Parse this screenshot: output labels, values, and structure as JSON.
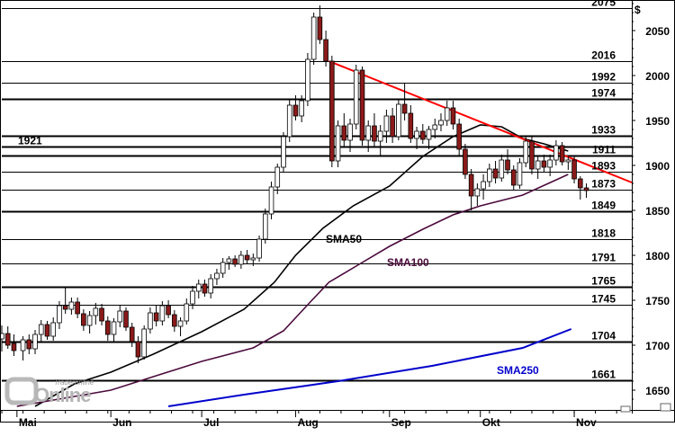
{
  "chart_data": {
    "type": "candlestick",
    "currency_label": "$",
    "ylim": [
      1632,
      2082
    ],
    "y_ticks": [
      1650,
      1700,
      1750,
      1800,
      1850,
      1900,
      1950,
      2000,
      2050
    ],
    "x_range": [
      "2016-04-26",
      "2016-11-20"
    ],
    "x_ticks": [
      {
        "label": "Mai",
        "date": "2016-05-01"
      },
      {
        "label": "Jun",
        "date": "2016-06-01"
      },
      {
        "label": "Jul",
        "date": "2016-07-01"
      },
      {
        "label": "Aug",
        "date": "2016-08-01"
      },
      {
        "label": "Sep",
        "date": "2016-09-01"
      },
      {
        "label": "Okt",
        "date": "2016-10-01"
      },
      {
        "label": "Nov",
        "date": "2016-11-01"
      }
    ],
    "levels": [
      {
        "value": 2075,
        "label": "2075",
        "bold": false
      },
      {
        "value": 2016,
        "label": "2016",
        "bold": false
      },
      {
        "value": 1992,
        "label": "1992",
        "bold": false
      },
      {
        "value": 1974,
        "label": "1974",
        "bold": true
      },
      {
        "value": 1933,
        "label": "1933",
        "bold": true
      },
      {
        "value": 1921,
        "label": "1921",
        "bold": true,
        "label_side": "left"
      },
      {
        "value": 1911,
        "label": "1911",
        "bold": true
      },
      {
        "value": 1893,
        "label": "1893",
        "bold": false
      },
      {
        "value": 1873,
        "label": "1873",
        "bold": false
      },
      {
        "value": 1849,
        "label": "1849",
        "bold": true
      },
      {
        "value": 1818,
        "label": "1818",
        "bold": false
      },
      {
        "value": 1791,
        "label": "1791",
        "bold": false
      },
      {
        "value": 1765,
        "label": "1765",
        "bold": true
      },
      {
        "value": 1745,
        "label": "1745",
        "bold": false
      },
      {
        "value": 1704,
        "label": "1704",
        "bold": true
      },
      {
        "value": 1661,
        "label": "1661",
        "bold": true
      }
    ],
    "trendline": {
      "color": "#ff0000",
      "points": [
        [
          "2016-08-12",
          2016
        ],
        [
          "2016-11-20",
          1881
        ]
      ]
    },
    "sma": [
      {
        "name": "SMA50",
        "color": "#000000",
        "points": [
          [
            "2016-05-07",
            1632
          ],
          [
            "2016-05-20",
            1657
          ],
          [
            "2016-06-01",
            1670
          ],
          [
            "2016-06-15",
            1690
          ],
          [
            "2016-07-01",
            1715
          ],
          [
            "2016-07-15",
            1740
          ],
          [
            "2016-07-25",
            1770
          ],
          [
            "2016-08-01",
            1800
          ],
          [
            "2016-08-10",
            1830
          ],
          [
            "2016-08-20",
            1855
          ],
          [
            "2016-09-01",
            1877
          ],
          [
            "2016-09-12",
            1910
          ],
          [
            "2016-09-22",
            1932
          ],
          [
            "2016-10-01",
            1945
          ],
          [
            "2016-10-08",
            1943
          ],
          [
            "2016-10-15",
            1930
          ],
          [
            "2016-10-22",
            1924
          ],
          [
            "2016-10-30",
            1916
          ]
        ]
      },
      {
        "name": "SMA100",
        "color": "#4b0a3c",
        "points": [
          [
            "2016-05-01",
            1632
          ],
          [
            "2016-06-01",
            1650
          ],
          [
            "2016-06-15",
            1665
          ],
          [
            "2016-07-01",
            1682
          ],
          [
            "2016-07-18",
            1697
          ],
          [
            "2016-07-28",
            1716
          ],
          [
            "2016-08-05",
            1745
          ],
          [
            "2016-08-12",
            1770
          ],
          [
            "2016-08-22",
            1790
          ],
          [
            "2016-09-01",
            1810
          ],
          [
            "2016-09-12",
            1829
          ],
          [
            "2016-09-22",
            1845
          ],
          [
            "2016-10-01",
            1855
          ],
          [
            "2016-10-15",
            1867
          ],
          [
            "2016-10-30",
            1890
          ]
        ]
      },
      {
        "name": "SMA250",
        "color": "#0000cc",
        "points": [
          [
            "2016-06-20",
            1632
          ],
          [
            "2016-07-15",
            1645
          ],
          [
            "2016-08-15",
            1660
          ],
          [
            "2016-09-15",
            1677
          ],
          [
            "2016-10-15",
            1697
          ],
          [
            "2016-10-31",
            1718
          ]
        ]
      }
    ],
    "candles": [
      [
        "2016-04-26",
        1707,
        1722,
        1693,
        1713
      ],
      [
        "2016-04-28",
        1713,
        1721,
        1696,
        1700
      ],
      [
        "2016-04-30",
        1702,
        1712,
        1688,
        1694
      ],
      [
        "2016-05-03",
        1694,
        1710,
        1683,
        1706
      ],
      [
        "2016-05-05",
        1706,
        1712,
        1690,
        1696
      ],
      [
        "2016-05-07",
        1696,
        1717,
        1690,
        1712
      ],
      [
        "2016-05-09",
        1712,
        1728,
        1703,
        1723
      ],
      [
        "2016-05-11",
        1723,
        1727,
        1706,
        1710
      ],
      [
        "2016-05-13",
        1710,
        1731,
        1705,
        1725
      ],
      [
        "2016-05-15",
        1725,
        1749,
        1718,
        1744
      ],
      [
        "2016-05-17",
        1744,
        1764,
        1735,
        1740
      ],
      [
        "2016-05-19",
        1740,
        1753,
        1734,
        1748
      ],
      [
        "2016-05-21",
        1748,
        1753,
        1730,
        1735
      ],
      [
        "2016-05-23",
        1735,
        1740,
        1716,
        1722
      ],
      [
        "2016-05-25",
        1722,
        1738,
        1713,
        1733
      ],
      [
        "2016-05-27",
        1733,
        1747,
        1723,
        1741
      ],
      [
        "2016-05-29",
        1741,
        1746,
        1722,
        1727
      ],
      [
        "2016-05-31",
        1727,
        1732,
        1705,
        1712
      ],
      [
        "2016-06-02",
        1712,
        1730,
        1704,
        1726
      ],
      [
        "2016-06-04",
        1726,
        1744,
        1720,
        1738
      ],
      [
        "2016-06-06",
        1738,
        1742,
        1716,
        1720
      ],
      [
        "2016-06-08",
        1720,
        1725,
        1698,
        1704
      ],
      [
        "2016-06-10",
        1704,
        1710,
        1680,
        1687
      ],
      [
        "2016-06-12",
        1687,
        1722,
        1684,
        1718
      ],
      [
        "2016-06-14",
        1718,
        1742,
        1713,
        1736
      ],
      [
        "2016-06-16",
        1736,
        1744,
        1721,
        1727
      ],
      [
        "2016-06-18",
        1727,
        1749,
        1722,
        1744
      ],
      [
        "2016-06-20",
        1744,
        1750,
        1730,
        1734
      ],
      [
        "2016-06-22",
        1734,
        1739,
        1715,
        1721
      ],
      [
        "2016-06-24",
        1721,
        1731,
        1710,
        1727
      ],
      [
        "2016-06-26",
        1727,
        1752,
        1723,
        1746
      ],
      [
        "2016-06-28",
        1746,
        1766,
        1740,
        1760
      ],
      [
        "2016-06-30",
        1760,
        1773,
        1752,
        1768
      ],
      [
        "2016-07-02",
        1768,
        1773,
        1754,
        1758
      ],
      [
        "2016-07-04",
        1758,
        1779,
        1752,
        1774
      ],
      [
        "2016-07-06",
        1774,
        1785,
        1767,
        1780
      ],
      [
        "2016-07-08",
        1780,
        1797,
        1775,
        1792
      ],
      [
        "2016-07-10",
        1792,
        1799,
        1784,
        1796
      ],
      [
        "2016-07-12",
        1796,
        1800,
        1787,
        1790
      ],
      [
        "2016-07-14",
        1790,
        1805,
        1785,
        1800
      ],
      [
        "2016-07-16",
        1800,
        1806,
        1790,
        1795
      ],
      [
        "2016-07-18",
        1795,
        1802,
        1788,
        1797
      ],
      [
        "2016-07-20",
        1797,
        1822,
        1793,
        1818
      ],
      [
        "2016-07-22",
        1818,
        1852,
        1813,
        1846
      ],
      [
        "2016-07-24",
        1846,
        1882,
        1840,
        1876
      ],
      [
        "2016-07-26",
        1876,
        1902,
        1868,
        1898
      ],
      [
        "2016-07-28",
        1898,
        1937,
        1892,
        1932
      ],
      [
        "2016-07-30",
        1932,
        1973,
        1926,
        1967
      ],
      [
        "2016-08-01",
        1967,
        1978,
        1950,
        1955
      ],
      [
        "2016-08-03",
        1955,
        1978,
        1948,
        1972
      ],
      [
        "2016-08-05",
        1972,
        2025,
        1966,
        2018
      ],
      [
        "2016-08-07",
        2018,
        2070,
        2012,
        2065
      ],
      [
        "2016-08-09",
        2065,
        2078,
        2035,
        2040
      ],
      [
        "2016-08-11",
        2040,
        2050,
        2010,
        2016
      ],
      [
        "2016-08-13",
        2016,
        2022,
        1898,
        1905
      ],
      [
        "2016-08-15",
        1905,
        1950,
        1898,
        1944
      ],
      [
        "2016-08-17",
        1944,
        1958,
        1920,
        1928
      ],
      [
        "2016-08-19",
        1928,
        1952,
        1915,
        1946
      ],
      [
        "2016-08-21",
        1946,
        2012,
        1940,
        2006
      ],
      [
        "2016-08-23",
        2006,
        2010,
        1922,
        1928
      ],
      [
        "2016-08-25",
        1928,
        1950,
        1915,
        1944
      ],
      [
        "2016-08-27",
        1944,
        1958,
        1920,
        1927
      ],
      [
        "2016-08-29",
        1927,
        1945,
        1910,
        1938
      ],
      [
        "2016-08-31",
        1938,
        1962,
        1925,
        1955
      ],
      [
        "2016-09-02",
        1955,
        1964,
        1925,
        1932
      ],
      [
        "2016-09-04",
        1932,
        1974,
        1928,
        1968
      ],
      [
        "2016-09-06",
        1968,
        1992,
        1950,
        1958
      ],
      [
        "2016-09-08",
        1958,
        1967,
        1925,
        1930
      ],
      [
        "2016-09-10",
        1930,
        1943,
        1918,
        1938
      ],
      [
        "2016-09-12",
        1938,
        1946,
        1924,
        1929
      ],
      [
        "2016-09-14",
        1929,
        1944,
        1918,
        1940
      ],
      [
        "2016-09-16",
        1940,
        1952,
        1930,
        1945
      ],
      [
        "2016-09-18",
        1945,
        1958,
        1938,
        1950
      ],
      [
        "2016-09-20",
        1950,
        1972,
        1944,
        1964
      ],
      [
        "2016-09-22",
        1964,
        1972,
        1940,
        1946
      ],
      [
        "2016-09-24",
        1946,
        1952,
        1910,
        1918
      ],
      [
        "2016-09-26",
        1918,
        1924,
        1885,
        1890
      ],
      [
        "2016-09-28",
        1890,
        1896,
        1850,
        1866
      ],
      [
        "2016-09-30",
        1866,
        1880,
        1855,
        1874
      ],
      [
        "2016-10-02",
        1874,
        1890,
        1862,
        1882
      ],
      [
        "2016-10-04",
        1882,
        1902,
        1876,
        1896
      ],
      [
        "2016-10-06",
        1896,
        1905,
        1880,
        1886
      ],
      [
        "2016-10-08",
        1886,
        1912,
        1882,
        1906
      ],
      [
        "2016-10-10",
        1906,
        1918,
        1890,
        1895
      ],
      [
        "2016-10-12",
        1895,
        1900,
        1872,
        1878
      ],
      [
        "2016-10-14",
        1878,
        1908,
        1874,
        1903
      ],
      [
        "2016-10-16",
        1903,
        1932,
        1898,
        1927
      ],
      [
        "2016-10-18",
        1927,
        1932,
        1890,
        1896
      ],
      [
        "2016-10-20",
        1896,
        1910,
        1885,
        1905
      ],
      [
        "2016-10-22",
        1905,
        1912,
        1892,
        1898
      ],
      [
        "2016-10-24",
        1898,
        1912,
        1888,
        1906
      ],
      [
        "2016-10-26",
        1906,
        1928,
        1900,
        1922
      ],
      [
        "2016-10-28",
        1922,
        1926,
        1900,
        1904
      ],
      [
        "2016-10-30",
        1904,
        1910,
        1895,
        1906
      ],
      [
        "2016-11-01",
        1906,
        1911,
        1880,
        1885
      ],
      [
        "2016-11-03",
        1885,
        1888,
        1862,
        1875
      ],
      [
        "2016-11-05",
        1875,
        1880,
        1864,
        1872
      ]
    ]
  },
  "watermark": {
    "line1": "Traderonline",
    "line2": "Online"
  },
  "grid": false,
  "legend": "none"
}
